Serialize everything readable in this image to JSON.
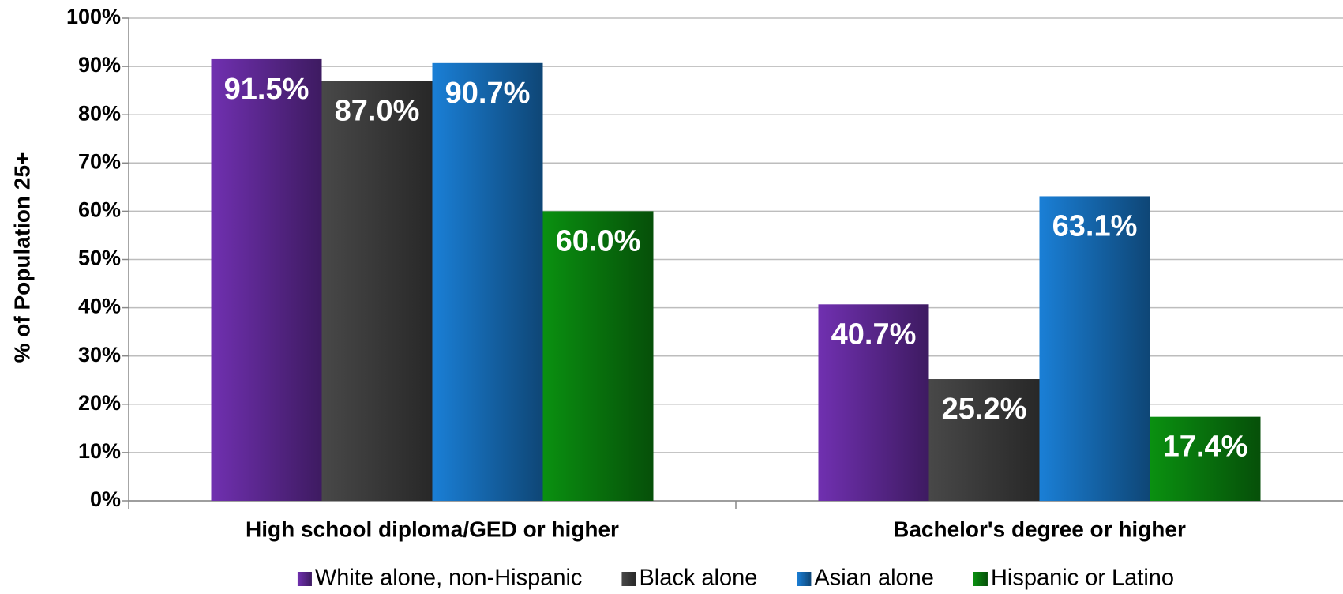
{
  "chart_data": {
    "type": "bar",
    "ylabel": "% of Population 25+",
    "categories": [
      "High school diploma/GED or higher",
      "Bachelor's degree or higher"
    ],
    "series": [
      {
        "name": "White alone, non-Hispanic",
        "color": "#7030b0",
        "values": [
          91.5,
          40.7
        ],
        "value_labels": [
          "91.5%",
          "40.7%"
        ]
      },
      {
        "name": "Black alone",
        "color": "#484848",
        "values": [
          87.0,
          25.2
        ],
        "value_labels": [
          "87.0%",
          "25.2%"
        ]
      },
      {
        "name": "Asian alone",
        "color": "#1a7fd6",
        "values": [
          90.7,
          63.1
        ],
        "value_labels": [
          "90.7%",
          "63.1%"
        ]
      },
      {
        "name": "Hispanic or Latino",
        "color": "#0a9010",
        "values": [
          60.0,
          17.4
        ],
        "value_labels": [
          "60.0%",
          "17.4%"
        ]
      }
    ],
    "ylim": [
      0,
      100
    ],
    "yticks": [
      {
        "value": 0,
        "label": "0%"
      },
      {
        "value": 10,
        "label": "10%"
      },
      {
        "value": 20,
        "label": "20%"
      },
      {
        "value": 30,
        "label": "30%"
      },
      {
        "value": 40,
        "label": "40%"
      },
      {
        "value": 50,
        "label": "50%"
      },
      {
        "value": 60,
        "label": "60%"
      },
      {
        "value": 70,
        "label": "70%"
      },
      {
        "value": 80,
        "label": "80%"
      },
      {
        "value": 90,
        "label": "90%"
      },
      {
        "value": 100,
        "label": "100%"
      }
    ],
    "grid": true,
    "legend": "bottom"
  }
}
